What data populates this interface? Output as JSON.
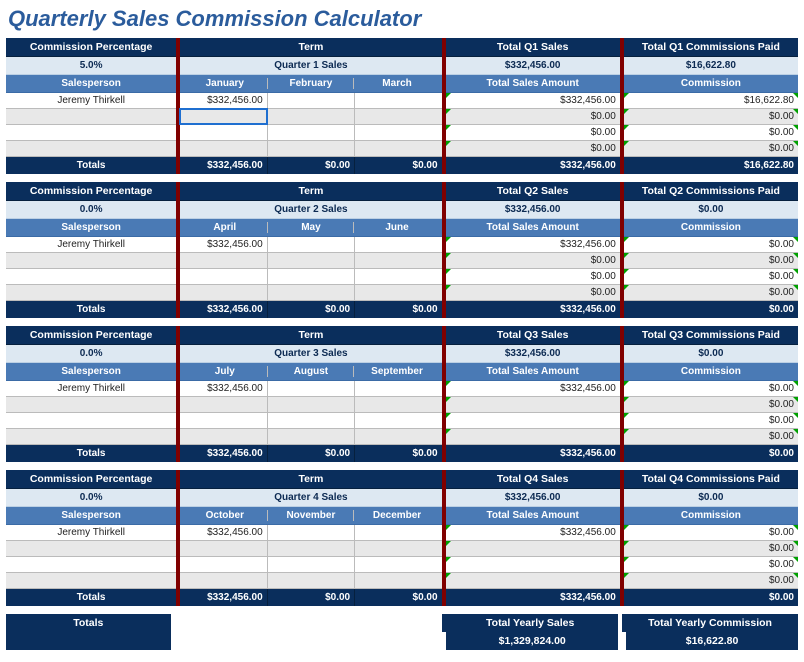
{
  "title": "Quarterly Sales Commission Calculator",
  "labels": {
    "commission_pct": "Commission Percentage",
    "salesperson": "Salesperson",
    "term": "Term",
    "total_sales_amount": "Total Sales Amount",
    "commission": "Commission",
    "totals": "Totals"
  },
  "quarters": [
    {
      "pct": "5.0%",
      "term_sub": "Quarter 1 Sales",
      "months": [
        "January",
        "February",
        "March"
      ],
      "totals_hdr": "Total Q1 Sales",
      "comm_hdr": "Total Q1 Commissions Paid",
      "totals_val": "$332,456.00",
      "comm_val": "$16,622.80",
      "salesperson": "Jeremy Thirkell",
      "m1": "$332,456.00",
      "row_sales": [
        "$332,456.00",
        "$0.00",
        "$0.00",
        "$0.00"
      ],
      "row_comm": [
        "$16,622.80",
        "$0.00",
        "$0.00",
        "$0.00"
      ],
      "t_m1": "$332,456.00",
      "t_m2": "$0.00",
      "t_m3": "$0.00",
      "t_sales": "$332,456.00",
      "t_comm": "$16,622.80",
      "active_cell": true
    },
    {
      "pct": "0.0%",
      "term_sub": "Quarter 2 Sales",
      "months": [
        "April",
        "May",
        "June"
      ],
      "totals_hdr": "Total Q2 Sales",
      "comm_hdr": "Total Q2 Commissions Paid",
      "totals_val": "$332,456.00",
      "comm_val": "$0.00",
      "salesperson": "Jeremy Thirkell",
      "m1": "$332,456.00",
      "row_sales": [
        "$332,456.00",
        "$0.00",
        "$0.00",
        "$0.00"
      ],
      "row_comm": [
        "$0.00",
        "$0.00",
        "$0.00",
        "$0.00"
      ],
      "t_m1": "$332,456.00",
      "t_m2": "$0.00",
      "t_m3": "$0.00",
      "t_sales": "$332,456.00",
      "t_comm": "$0.00"
    },
    {
      "pct": "0.0%",
      "term_sub": "Quarter 3 Sales",
      "months": [
        "July",
        "August",
        "September"
      ],
      "totals_hdr": "Total Q3 Sales",
      "comm_hdr": "Total Q3 Commissions Paid",
      "totals_val": "$332,456.00",
      "comm_val": "$0.00",
      "salesperson": "Jeremy Thirkell",
      "m1": "$332,456.00",
      "row_sales": [
        "$332,456.00",
        "",
        "",
        ""
      ],
      "row_comm": [
        "$0.00",
        "$0.00",
        "$0.00",
        "$0.00"
      ],
      "t_m1": "$332,456.00",
      "t_m2": "$0.00",
      "t_m3": "$0.00",
      "t_sales": "$332,456.00",
      "t_comm": "$0.00"
    },
    {
      "pct": "0.0%",
      "term_sub": "Quarter 4 Sales",
      "months": [
        "October",
        "November",
        "December"
      ],
      "totals_hdr": "Total Q4 Sales",
      "comm_hdr": "Total Q4 Commissions Paid",
      "totals_val": "$332,456.00",
      "comm_val": "$0.00",
      "salesperson": "Jeremy Thirkell",
      "m1": "$332,456.00",
      "row_sales": [
        "$332,456.00",
        "",
        "",
        ""
      ],
      "row_comm": [
        "$0.00",
        "$0.00",
        "$0.00",
        "$0.00"
      ],
      "t_m1": "$332,456.00",
      "t_m2": "$0.00",
      "t_m3": "$0.00",
      "t_sales": "$332,456.00",
      "t_comm": "$0.00"
    }
  ],
  "grand": {
    "totals_label": "Totals",
    "yearly_sales_label": "Total Yearly Sales",
    "yearly_comm_label": "Total Yearly Commission",
    "yearly_sales": "$1,329,824.00",
    "yearly_comm": "$16,622.80"
  }
}
